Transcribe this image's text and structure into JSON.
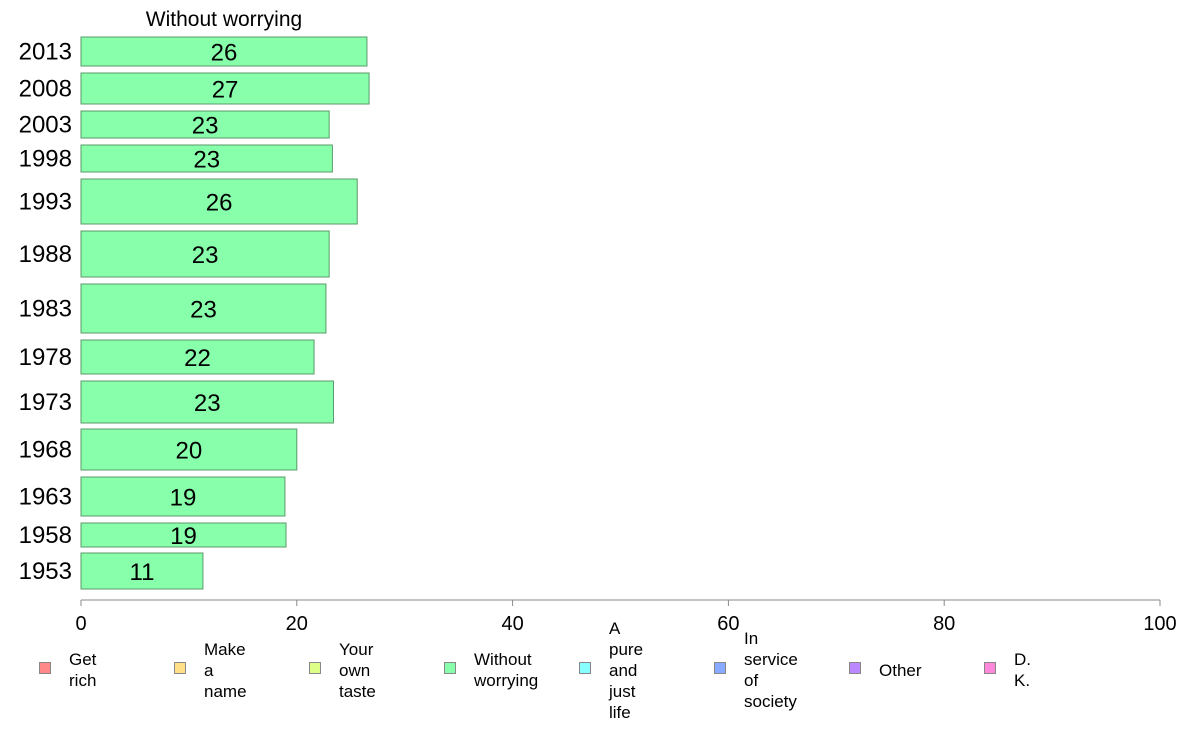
{
  "chart_data": {
    "type": "bar",
    "orientation": "horizontal",
    "title": "Without worrying",
    "categories": [
      "2013",
      "2008",
      "2003",
      "1998",
      "1993",
      "1988",
      "1983",
      "1978",
      "1973",
      "1968",
      "1963",
      "1958",
      "1953"
    ],
    "values": [
      26.5,
      26.7,
      23.0,
      23.3,
      25.6,
      23.0,
      22.7,
      21.6,
      23.4,
      20.0,
      18.9,
      19.0,
      11.3
    ],
    "value_labels": [
      "26",
      "27",
      "23",
      "23",
      "26",
      "23",
      "23",
      "22",
      "23",
      "20",
      "19",
      "19",
      "11"
    ],
    "series": [
      {
        "name": "Without worrying",
        "color": "#88ffaa"
      }
    ],
    "xlim": [
      0,
      100
    ],
    "xticks": [
      "0",
      "20",
      "40",
      "60",
      "80",
      "100"
    ],
    "grid": false
  },
  "legend": {
    "items": [
      {
        "label": "Get rich",
        "color": "#ff8888"
      },
      {
        "label": "Make\na name",
        "color": "#ffe088"
      },
      {
        "label": "Your own\ntaste",
        "color": "#ddff88"
      },
      {
        "label": "Without\nworrying",
        "color": "#88ffaa"
      },
      {
        "label": "A pure and\njust life",
        "color": "#88ffff"
      },
      {
        "label": "In service\nof society",
        "color": "#88aaff"
      },
      {
        "label": "Other",
        "color": "#bb88ff"
      },
      {
        "label": "D. K.",
        "color": "#ff88dd"
      }
    ]
  }
}
